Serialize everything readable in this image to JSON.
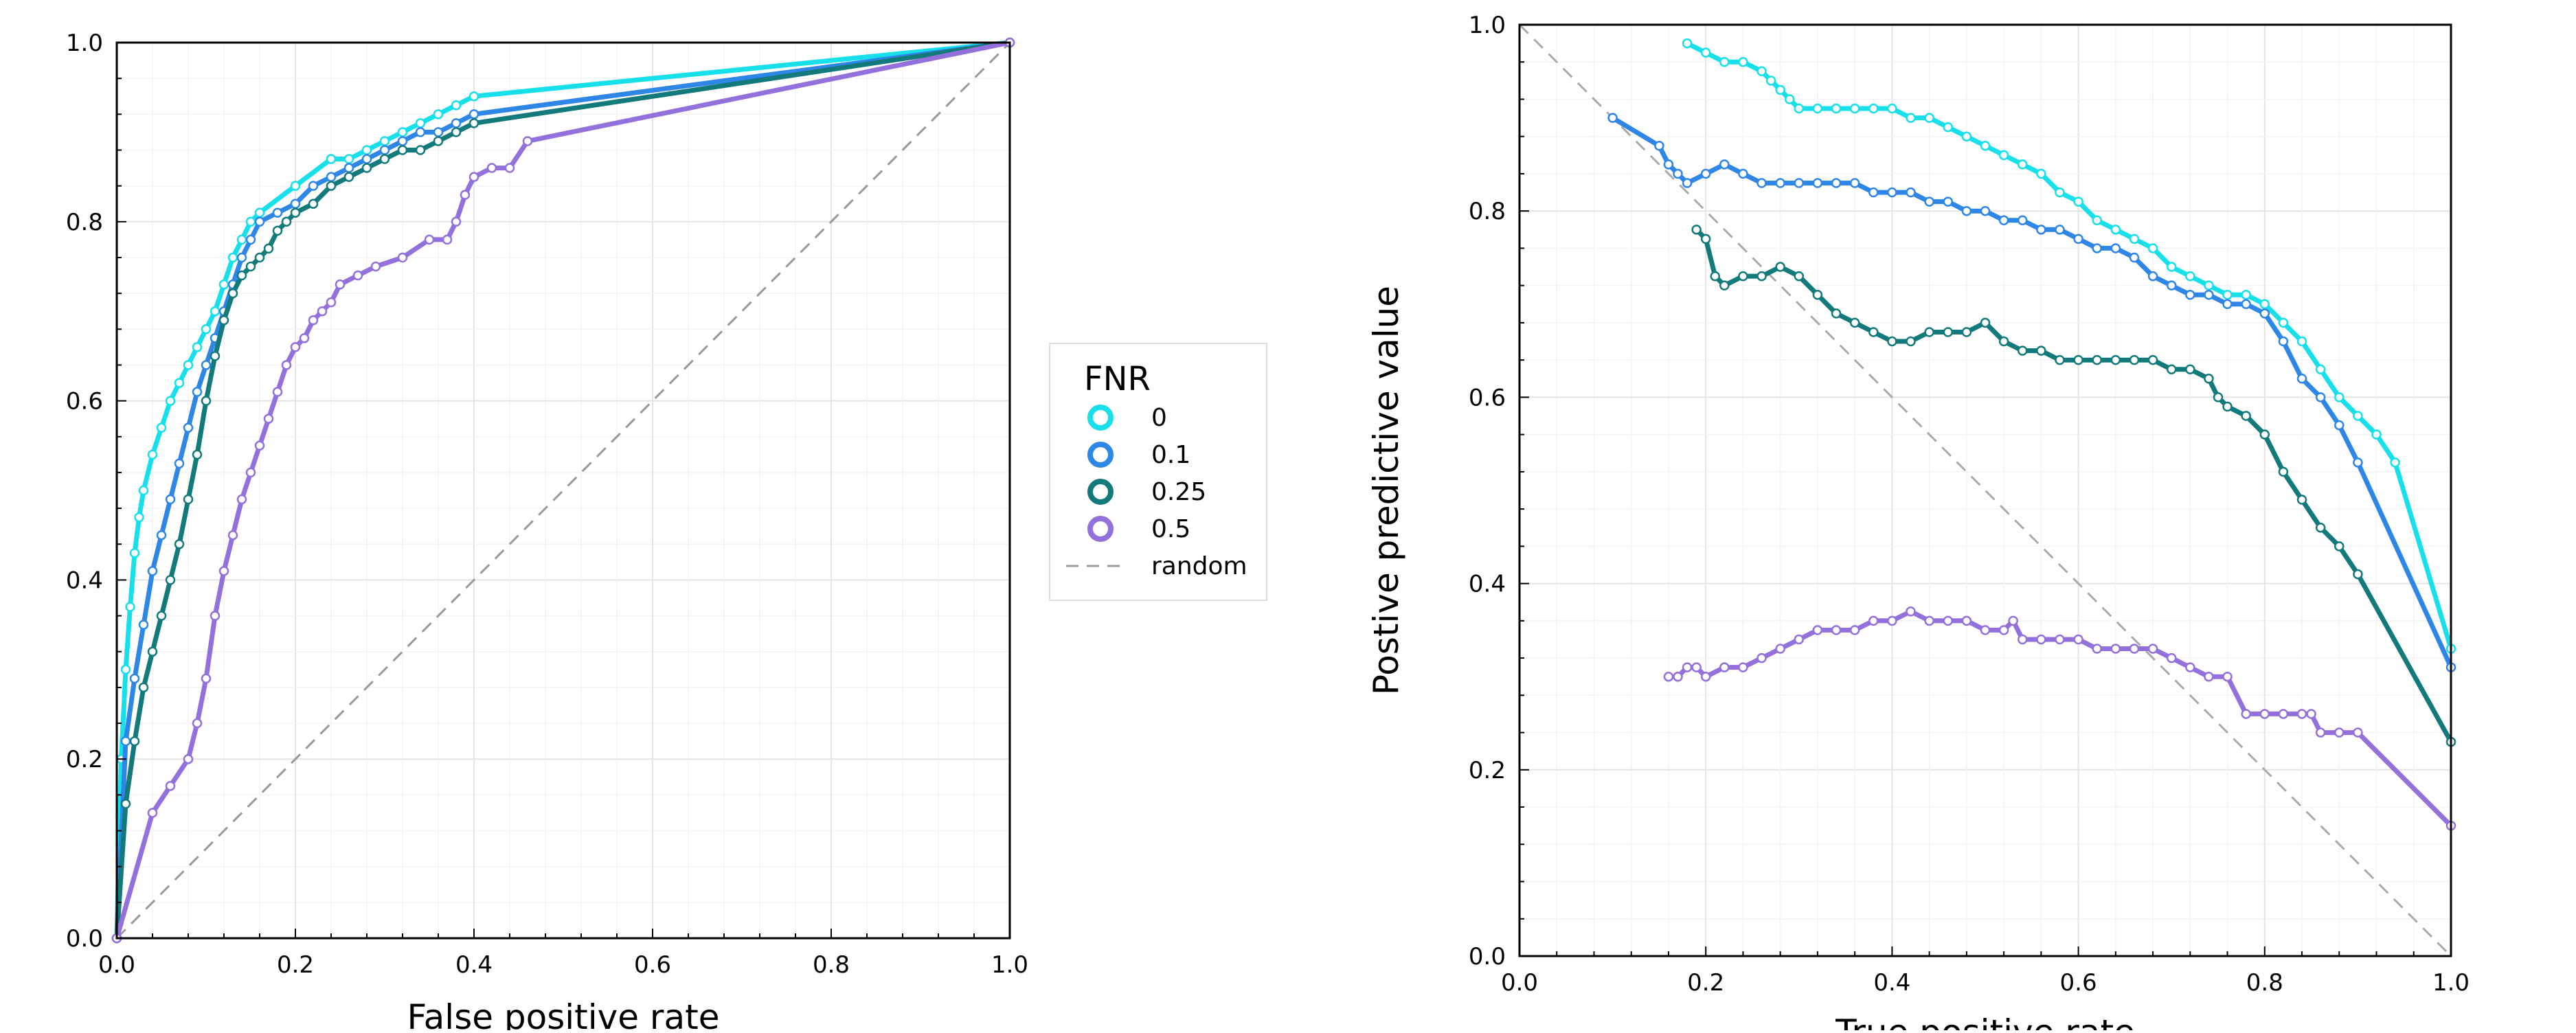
{
  "chart_data": [
    {
      "type": "line",
      "xlabel": "False positive rate",
      "ylabel": "",
      "xlim": [
        0,
        1
      ],
      "ylim": [
        0,
        1
      ],
      "x_ticks": [
        "0.0",
        "0.2",
        "0.4",
        "0.6",
        "0.8",
        "1.0"
      ],
      "y_ticks": [
        "0.0",
        "0.2",
        "0.4",
        "0.6",
        "0.8",
        "1.0"
      ],
      "grid": true,
      "legend": {
        "title": "FNR",
        "placement": "outside-right",
        "entries": [
          "0",
          "0.1",
          "0.25",
          "0.5",
          "random"
        ]
      },
      "series": [
        {
          "name": "0",
          "color": "#17e0ea",
          "x": [
            0.0,
            0.005,
            0.01,
            0.015,
            0.02,
            0.025,
            0.03,
            0.04,
            0.05,
            0.06,
            0.07,
            0.08,
            0.09,
            0.1,
            0.11,
            0.12,
            0.13,
            0.14,
            0.15,
            0.16,
            0.2,
            0.24,
            0.26,
            0.28,
            0.3,
            0.32,
            0.34,
            0.36,
            0.38,
            0.4,
            1.0
          ],
          "y": [
            0.0,
            0.2,
            0.3,
            0.37,
            0.43,
            0.47,
            0.5,
            0.54,
            0.57,
            0.6,
            0.62,
            0.64,
            0.66,
            0.68,
            0.7,
            0.73,
            0.76,
            0.78,
            0.8,
            0.81,
            0.84,
            0.87,
            0.87,
            0.88,
            0.89,
            0.9,
            0.91,
            0.92,
            0.93,
            0.94,
            1.0
          ]
        },
        {
          "name": "0.1",
          "color": "#2e86e6",
          "x": [
            0.0,
            0.01,
            0.02,
            0.03,
            0.04,
            0.05,
            0.06,
            0.07,
            0.08,
            0.09,
            0.1,
            0.11,
            0.12,
            0.13,
            0.14,
            0.15,
            0.16,
            0.18,
            0.2,
            0.22,
            0.24,
            0.26,
            0.28,
            0.3,
            0.32,
            0.34,
            0.36,
            0.38,
            0.4,
            1.0
          ],
          "y": [
            0.0,
            0.22,
            0.29,
            0.35,
            0.41,
            0.45,
            0.49,
            0.53,
            0.57,
            0.61,
            0.64,
            0.67,
            0.7,
            0.73,
            0.76,
            0.78,
            0.8,
            0.81,
            0.82,
            0.84,
            0.85,
            0.86,
            0.87,
            0.88,
            0.89,
            0.9,
            0.9,
            0.91,
            0.92,
            1.0
          ]
        },
        {
          "name": "0.25",
          "color": "#127a7a",
          "x": [
            0.0,
            0.01,
            0.02,
            0.03,
            0.04,
            0.05,
            0.06,
            0.07,
            0.08,
            0.09,
            0.1,
            0.11,
            0.12,
            0.13,
            0.14,
            0.15,
            0.16,
            0.17,
            0.18,
            0.19,
            0.2,
            0.22,
            0.24,
            0.26,
            0.28,
            0.3,
            0.32,
            0.34,
            0.36,
            0.38,
            0.4,
            1.0
          ],
          "y": [
            0.0,
            0.15,
            0.22,
            0.28,
            0.32,
            0.36,
            0.4,
            0.44,
            0.49,
            0.54,
            0.6,
            0.65,
            0.69,
            0.72,
            0.74,
            0.75,
            0.76,
            0.77,
            0.79,
            0.8,
            0.81,
            0.82,
            0.84,
            0.85,
            0.86,
            0.87,
            0.88,
            0.88,
            0.89,
            0.9,
            0.91,
            1.0
          ]
        },
        {
          "name": "0.5",
          "color": "#9370db",
          "x": [
            0.0,
            0.04,
            0.06,
            0.08,
            0.09,
            0.1,
            0.11,
            0.12,
            0.13,
            0.14,
            0.15,
            0.16,
            0.17,
            0.18,
            0.19,
            0.2,
            0.21,
            0.22,
            0.23,
            0.24,
            0.25,
            0.27,
            0.29,
            0.32,
            0.35,
            0.37,
            0.38,
            0.39,
            0.4,
            0.42,
            0.44,
            0.46,
            1.0
          ],
          "y": [
            0.0,
            0.14,
            0.17,
            0.2,
            0.24,
            0.29,
            0.36,
            0.41,
            0.45,
            0.49,
            0.52,
            0.55,
            0.58,
            0.61,
            0.64,
            0.66,
            0.67,
            0.69,
            0.7,
            0.71,
            0.73,
            0.74,
            0.75,
            0.76,
            0.78,
            0.78,
            0.8,
            0.83,
            0.85,
            0.86,
            0.86,
            0.89,
            1.0
          ]
        },
        {
          "name": "random",
          "color": "#999999",
          "dash": true,
          "x": [
            0.0,
            1.0
          ],
          "y": [
            0.0,
            1.0
          ]
        }
      ]
    },
    {
      "type": "line",
      "xlabel": "True positive rate",
      "ylabel": "Postive predictive value",
      "xlim": [
        0,
        1
      ],
      "ylim": [
        0,
        1
      ],
      "x_ticks": [
        "0.0",
        "0.2",
        "0.4",
        "0.6",
        "0.8",
        "1.0"
      ],
      "y_ticks": [
        "0.0",
        "0.2",
        "0.4",
        "0.6",
        "0.8",
        "1.0"
      ],
      "grid": true,
      "series": [
        {
          "name": "0",
          "color": "#17e0ea",
          "x": [
            0.18,
            0.2,
            0.22,
            0.24,
            0.26,
            0.27,
            0.28,
            0.29,
            0.3,
            0.32,
            0.34,
            0.36,
            0.38,
            0.4,
            0.42,
            0.44,
            0.46,
            0.48,
            0.5,
            0.52,
            0.54,
            0.56,
            0.58,
            0.6,
            0.62,
            0.64,
            0.66,
            0.68,
            0.7,
            0.72,
            0.74,
            0.76,
            0.78,
            0.8,
            0.82,
            0.84,
            0.86,
            0.88,
            0.9,
            0.92,
            0.94,
            1.0
          ],
          "y": [
            0.98,
            0.97,
            0.96,
            0.96,
            0.95,
            0.94,
            0.93,
            0.92,
            0.91,
            0.91,
            0.91,
            0.91,
            0.91,
            0.91,
            0.9,
            0.9,
            0.89,
            0.88,
            0.87,
            0.86,
            0.85,
            0.84,
            0.82,
            0.81,
            0.79,
            0.78,
            0.77,
            0.76,
            0.74,
            0.73,
            0.72,
            0.71,
            0.71,
            0.7,
            0.68,
            0.66,
            0.63,
            0.6,
            0.58,
            0.56,
            0.53,
            0.33
          ]
        },
        {
          "name": "0.1",
          "color": "#2e86e6",
          "x": [
            0.1,
            0.15,
            0.16,
            0.17,
            0.18,
            0.2,
            0.22,
            0.24,
            0.26,
            0.28,
            0.3,
            0.32,
            0.34,
            0.36,
            0.38,
            0.4,
            0.42,
            0.44,
            0.46,
            0.48,
            0.5,
            0.52,
            0.54,
            0.56,
            0.58,
            0.6,
            0.62,
            0.64,
            0.66,
            0.68,
            0.7,
            0.72,
            0.74,
            0.76,
            0.78,
            0.8,
            0.82,
            0.84,
            0.86,
            0.88,
            0.9,
            1.0
          ],
          "y": [
            0.9,
            0.87,
            0.85,
            0.84,
            0.83,
            0.84,
            0.85,
            0.84,
            0.83,
            0.83,
            0.83,
            0.83,
            0.83,
            0.83,
            0.82,
            0.82,
            0.82,
            0.81,
            0.81,
            0.8,
            0.8,
            0.79,
            0.79,
            0.78,
            0.78,
            0.77,
            0.76,
            0.76,
            0.75,
            0.73,
            0.72,
            0.71,
            0.71,
            0.7,
            0.7,
            0.69,
            0.66,
            0.62,
            0.6,
            0.57,
            0.53,
            0.31
          ]
        },
        {
          "name": "0.25",
          "color": "#127a7a",
          "x": [
            0.19,
            0.2,
            0.21,
            0.22,
            0.24,
            0.26,
            0.28,
            0.3,
            0.32,
            0.34,
            0.36,
            0.38,
            0.4,
            0.42,
            0.44,
            0.46,
            0.48,
            0.5,
            0.52,
            0.54,
            0.56,
            0.58,
            0.6,
            0.62,
            0.64,
            0.66,
            0.68,
            0.7,
            0.72,
            0.74,
            0.75,
            0.76,
            0.78,
            0.8,
            0.82,
            0.84,
            0.86,
            0.88,
            0.9,
            1.0
          ],
          "y": [
            0.78,
            0.77,
            0.73,
            0.72,
            0.73,
            0.73,
            0.74,
            0.73,
            0.71,
            0.69,
            0.68,
            0.67,
            0.66,
            0.66,
            0.67,
            0.67,
            0.67,
            0.68,
            0.66,
            0.65,
            0.65,
            0.64,
            0.64,
            0.64,
            0.64,
            0.64,
            0.64,
            0.63,
            0.63,
            0.62,
            0.6,
            0.59,
            0.58,
            0.56,
            0.52,
            0.49,
            0.46,
            0.44,
            0.41,
            0.23
          ]
        },
        {
          "name": "0.5",
          "color": "#9370db",
          "x": [
            0.16,
            0.17,
            0.18,
            0.19,
            0.2,
            0.22,
            0.24,
            0.26,
            0.28,
            0.3,
            0.32,
            0.34,
            0.36,
            0.38,
            0.4,
            0.42,
            0.44,
            0.46,
            0.48,
            0.5,
            0.52,
            0.53,
            0.54,
            0.56,
            0.58,
            0.6,
            0.62,
            0.64,
            0.66,
            0.68,
            0.7,
            0.72,
            0.74,
            0.76,
            0.78,
            0.8,
            0.82,
            0.84,
            0.85,
            0.86,
            0.88,
            0.9,
            1.0
          ],
          "y": [
            0.3,
            0.3,
            0.31,
            0.31,
            0.3,
            0.31,
            0.31,
            0.32,
            0.33,
            0.34,
            0.35,
            0.35,
            0.35,
            0.36,
            0.36,
            0.37,
            0.36,
            0.36,
            0.36,
            0.35,
            0.35,
            0.36,
            0.34,
            0.34,
            0.34,
            0.34,
            0.33,
            0.33,
            0.33,
            0.33,
            0.32,
            0.31,
            0.3,
            0.3,
            0.26,
            0.26,
            0.26,
            0.26,
            0.26,
            0.24,
            0.24,
            0.24,
            0.14
          ]
        },
        {
          "name": "random",
          "color": "#aaaaaa",
          "dash": true,
          "x": [
            0.0,
            1.0
          ],
          "y": [
            1.0,
            0.0
          ]
        }
      ]
    }
  ]
}
